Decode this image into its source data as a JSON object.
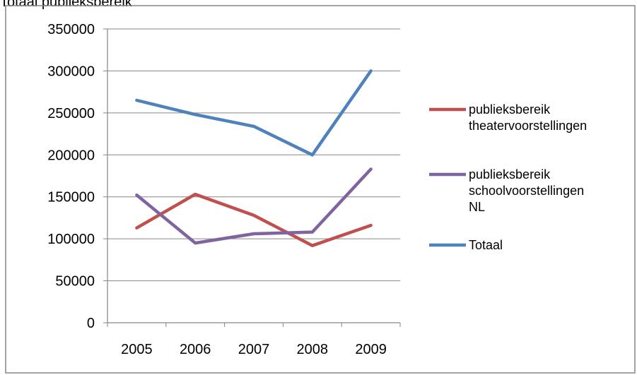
{
  "chart_data": {
    "type": "line",
    "title": "Totaal publieksbereik",
    "xlabel": "",
    "ylabel": "",
    "categories": [
      "2005",
      "2006",
      "2007",
      "2008",
      "2009"
    ],
    "ylim": [
      0,
      350000
    ],
    "yticks": [
      "0",
      "50000",
      "100000",
      "150000",
      "200000",
      "250000",
      "300000",
      "350000"
    ],
    "grid": true,
    "legend_position": "right",
    "series": [
      {
        "name": "publieksbereik theatervoorstellingen",
        "color": "#C0504D",
        "values": [
          113000,
          153000,
          128000,
          92000,
          116000
        ],
        "legend_lines": [
          "publieksbereik",
          "theatervoorstellingen"
        ]
      },
      {
        "name": "publieksbereik schoolvoorstellingen NL",
        "color": "#8064A2",
        "values": [
          152000,
          95000,
          106000,
          108000,
          183000
        ],
        "legend_lines": [
          "publieksbereik",
          "schoolvoorstellingen",
          "NL"
        ]
      },
      {
        "name": "Totaal",
        "color": "#4F81BD",
        "values": [
          265000,
          248000,
          234000,
          200000,
          300000
        ],
        "legend_lines": [
          "Totaal"
        ]
      }
    ]
  }
}
